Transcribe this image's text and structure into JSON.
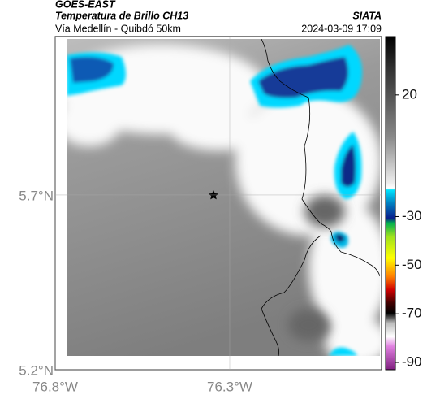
{
  "header": {
    "satellite": "GOES-EAST",
    "title": "Temperatura de Brillo CH13",
    "source": "SIATA",
    "subtitle": "Vía Medellín - Quibdó 50km",
    "datetime": "2024-03-09 17:09"
  },
  "map": {
    "xlim": [
      -76.8,
      -75.865
    ],
    "ylim": [
      5.2,
      6.153
    ],
    "xticks": [
      {
        "value": -76.8,
        "label": "76.8°W"
      },
      {
        "value": -76.3,
        "label": "76.3°W"
      }
    ],
    "yticks": [
      {
        "value": 5.7,
        "label": "5.7°N"
      },
      {
        "value": 5.2,
        "label": "5.2°N"
      }
    ],
    "grid": true
  },
  "colorbar": {
    "lim": [
      -93,
      44
    ],
    "ticks": [
      20,
      -30,
      -50,
      -70,
      -90
    ]
  }
}
